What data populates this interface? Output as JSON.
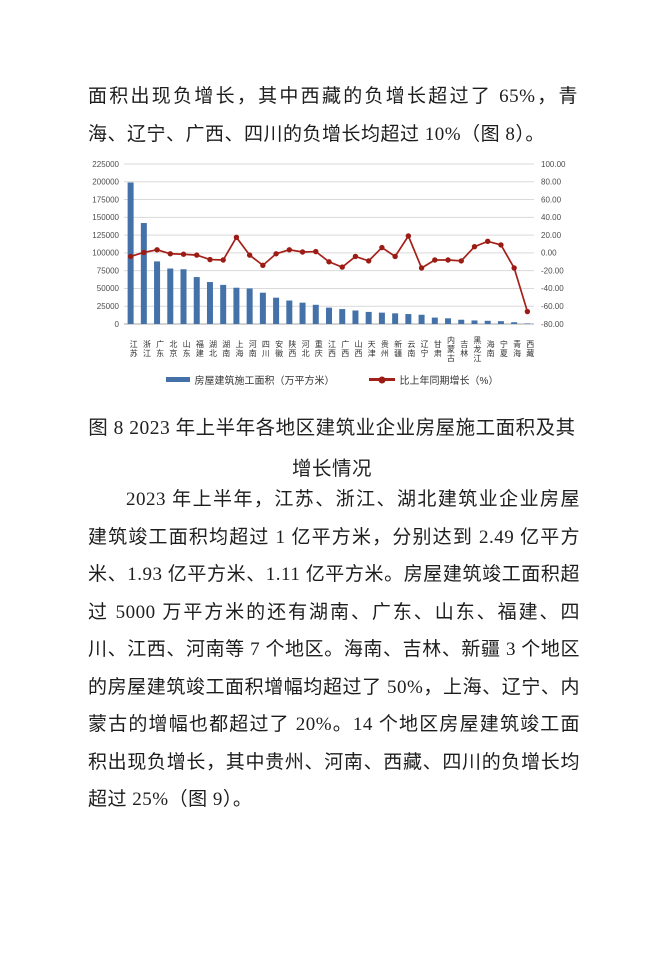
{
  "page": {
    "intro_text": "面积出现负增长，其中西藏的负增长超过了 65%，青海、辽宁、广西、四川的负增长均超过 10%（图 8）。",
    "figure_caption": "图 8 2023 年上半年各地区建筑业企业房屋施工面积及其增长情况",
    "body_text": "2023 年上半年，江苏、浙江、湖北建筑业企业房屋建筑竣工面积均超过 1 亿平方米，分别达到 2.49 亿平方米、1.93 亿平方米、1.11 亿平方米。房屋建筑竣工面积超过 5000 万平方米的还有湖南、广东、山东、福建、四川、江西、河南等 7 个地区。海南、吉林、新疆 3 个地区的房屋建筑竣工面积增幅均超过了 50%，上海、辽宁、内蒙古的增幅也都超过了 20%。14 个地区房屋建筑竣工面积出现负增长，其中贵州、河南、西藏、四川的负增长均超过 25%（图 9）。"
  },
  "chart_data": {
    "type": "bar",
    "subtype": "combo-bar-line",
    "grid": true,
    "legend_position": "bottom",
    "categories": [
      "江苏",
      "浙江",
      "广东",
      "北京",
      "山东",
      "福建",
      "湖北",
      "湖南",
      "上海",
      "河南",
      "四川",
      "安徽",
      "陕西",
      "河北",
      "重庆",
      "江西",
      "广西",
      "山西",
      "天津",
      "贵州",
      "新疆",
      "云南",
      "辽宁",
      "甘肃",
      "内蒙古",
      "吉林",
      "黑龙江",
      "海南",
      "宁夏",
      "青海",
      "西藏"
    ],
    "series": [
      {
        "name": "房屋建筑施工面积（万平方米）",
        "type": "bar",
        "axis": "left",
        "color": "#4472a8",
        "values": [
          199000,
          142000,
          88000,
          78000,
          77000,
          66000,
          59000,
          55000,
          51000,
          50000,
          44000,
          37000,
          33000,
          30000,
          27000,
          23000,
          21000,
          19000,
          17000,
          16000,
          15000,
          14000,
          13000,
          9000,
          8000,
          6000,
          5000,
          4500,
          4000,
          2500,
          800
        ]
      },
      {
        "name": "比上年同期增长（%）",
        "type": "line",
        "axis": "right",
        "color": "#a52019",
        "marker_color": "#9b1b15",
        "values": [
          -4,
          0.5,
          3.5,
          -1,
          -1.5,
          -2.5,
          -7.5,
          -8,
          17.5,
          -2.5,
          -14,
          -1,
          3.5,
          1,
          1.5,
          -10,
          -16,
          -4,
          -9,
          6,
          -4,
          19,
          -17,
          -8,
          -8,
          -9,
          7,
          13,
          9,
          -17,
          -66
        ]
      }
    ],
    "left_axis": {
      "min": 0,
      "max": 225000,
      "step": 25000,
      "ticks": [
        "225000",
        "200000",
        "175000",
        "150000",
        "125000",
        "100000",
        "75000",
        "50000",
        "25000",
        "0"
      ]
    },
    "right_axis": {
      "min": -80,
      "max": 100,
      "step": 20,
      "ticks": [
        "100.00",
        "80.00",
        "60.00",
        "40.00",
        "20.00",
        "0.00",
        "-20.00",
        "-40.00",
        "-60.00",
        "-80.00"
      ]
    },
    "colors": {
      "gridline": "#d9d9d9",
      "axis_line": "#a6a6a6",
      "tick_text": "#4d4d4d"
    }
  }
}
